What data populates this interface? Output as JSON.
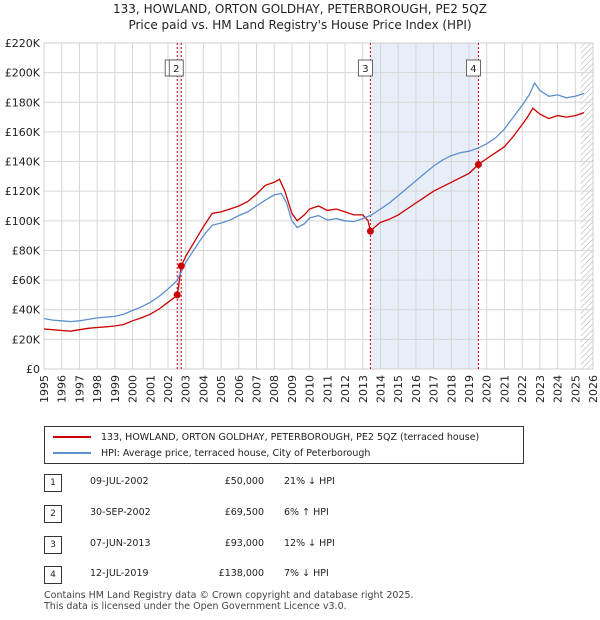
{
  "title_line1": "133, HOWLAND, ORTON GOLDHAY, PETERBOROUGH, PE2 5QZ",
  "title_line2": "Price paid vs. HM Land Registry's House Price Index (HPI)",
  "colors": {
    "price_line": "#cc0000",
    "hpi_line": "#5b8fd0",
    "shade": "#e8eef8",
    "marker_line": "#cc0000",
    "grid": "#d6d6d6",
    "hatch": "#aaaaaa"
  },
  "chart_data": {
    "type": "line",
    "xlabel": "",
    "ylabel": "",
    "xlim": [
      1995,
      2026
    ],
    "ylim": [
      0,
      220000
    ],
    "x_ticks": [
      "1995",
      "1996",
      "1997",
      "1998",
      "1999",
      "2000",
      "2001",
      "2002",
      "2003",
      "2004",
      "2005",
      "2006",
      "2007",
      "2008",
      "2009",
      "2010",
      "2011",
      "2012",
      "2013",
      "2014",
      "2015",
      "2016",
      "2017",
      "2018",
      "2019",
      "2020",
      "2021",
      "2022",
      "2023",
      "2024",
      "2025",
      "2026"
    ],
    "y_ticks": [
      {
        "value": 0,
        "label": "£0"
      },
      {
        "value": 20000,
        "label": "£20K"
      },
      {
        "value": 40000,
        "label": "£40K"
      },
      {
        "value": 60000,
        "label": "£60K"
      },
      {
        "value": 80000,
        "label": "£80K"
      },
      {
        "value": 100000,
        "label": "£100K"
      },
      {
        "value": 120000,
        "label": "£120K"
      },
      {
        "value": 140000,
        "label": "£140K"
      },
      {
        "value": 160000,
        "label": "£160K"
      },
      {
        "value": 180000,
        "label": "£180K"
      },
      {
        "value": 200000,
        "label": "£200K"
      },
      {
        "value": 220000,
        "label": "£220K"
      }
    ],
    "shaded_ranges": [
      [
        2002.52,
        2002.75
      ],
      [
        2013.43,
        2019.53
      ]
    ],
    "hatched_from": 2025.3,
    "series": [
      {
        "name": "133, HOWLAND, ORTON GOLDHAY, PETERBOROUGH, PE2 5QZ (terraced house)",
        "key": "price",
        "points": [
          [
            1995.0,
            27000
          ],
          [
            1995.5,
            26500
          ],
          [
            1996.0,
            26000
          ],
          [
            1996.5,
            25500
          ],
          [
            1997.0,
            26500
          ],
          [
            1997.5,
            27500
          ],
          [
            1998.0,
            28000
          ],
          [
            1998.5,
            28500
          ],
          [
            1999.0,
            29000
          ],
          [
            1999.5,
            30000
          ],
          [
            2000.0,
            32500
          ],
          [
            2000.5,
            34500
          ],
          [
            2001.0,
            37000
          ],
          [
            2001.5,
            40500
          ],
          [
            2002.0,
            45000
          ],
          [
            2002.5,
            49500
          ],
          [
            2002.52,
            50000
          ],
          [
            2002.6,
            56000
          ],
          [
            2002.75,
            69500
          ],
          [
            2003.0,
            76000
          ],
          [
            2003.5,
            86000
          ],
          [
            2004.0,
            96000
          ],
          [
            2004.5,
            105000
          ],
          [
            2005.0,
            106000
          ],
          [
            2005.5,
            108000
          ],
          [
            2006.0,
            110000
          ],
          [
            2006.5,
            113000
          ],
          [
            2007.0,
            118000
          ],
          [
            2007.5,
            124000
          ],
          [
            2008.0,
            126000
          ],
          [
            2008.3,
            128000
          ],
          [
            2008.6,
            120000
          ],
          [
            2009.0,
            105000
          ],
          [
            2009.3,
            100000
          ],
          [
            2009.7,
            104000
          ],
          [
            2010.0,
            108000
          ],
          [
            2010.5,
            110000
          ],
          [
            2011.0,
            107000
          ],
          [
            2011.5,
            108000
          ],
          [
            2012.0,
            106000
          ],
          [
            2012.5,
            104000
          ],
          [
            2013.0,
            104000
          ],
          [
            2013.3,
            100000
          ],
          [
            2013.43,
            93000
          ],
          [
            2013.7,
            96000
          ],
          [
            2014.0,
            99000
          ],
          [
            2014.5,
            101000
          ],
          [
            2015.0,
            104000
          ],
          [
            2015.5,
            108000
          ],
          [
            2016.0,
            112000
          ],
          [
            2016.5,
            116000
          ],
          [
            2017.0,
            120000
          ],
          [
            2017.5,
            123000
          ],
          [
            2018.0,
            126000
          ],
          [
            2018.5,
            129000
          ],
          [
            2019.0,
            132000
          ],
          [
            2019.53,
            138000
          ],
          [
            2020.0,
            142000
          ],
          [
            2020.5,
            146000
          ],
          [
            2021.0,
            150000
          ],
          [
            2021.5,
            157000
          ],
          [
            2022.0,
            165000
          ],
          [
            2022.3,
            170000
          ],
          [
            2022.6,
            176000
          ],
          [
            2023.0,
            172000
          ],
          [
            2023.5,
            169000
          ],
          [
            2024.0,
            171000
          ],
          [
            2024.5,
            170000
          ],
          [
            2025.0,
            171000
          ],
          [
            2025.5,
            173000
          ]
        ]
      },
      {
        "name": "HPI: Average price, terraced house, City of Peterborough",
        "key": "hpi",
        "points": [
          [
            1995.0,
            34000
          ],
          [
            1995.5,
            33000
          ],
          [
            1996.0,
            32500
          ],
          [
            1996.5,
            32000
          ],
          [
            1997.0,
            32500
          ],
          [
            1997.5,
            33500
          ],
          [
            1998.0,
            34500
          ],
          [
            1998.5,
            35000
          ],
          [
            1999.0,
            35500
          ],
          [
            1999.5,
            37000
          ],
          [
            2000.0,
            39500
          ],
          [
            2000.5,
            42000
          ],
          [
            2001.0,
            45000
          ],
          [
            2001.5,
            49000
          ],
          [
            2002.0,
            54000
          ],
          [
            2002.5,
            59500
          ],
          [
            2002.75,
            65500
          ],
          [
            2003.0,
            72000
          ],
          [
            2003.5,
            81000
          ],
          [
            2004.0,
            90000
          ],
          [
            2004.5,
            97000
          ],
          [
            2005.0,
            98500
          ],
          [
            2005.5,
            100500
          ],
          [
            2006.0,
            103500
          ],
          [
            2006.5,
            106000
          ],
          [
            2007.0,
            110000
          ],
          [
            2007.5,
            114000
          ],
          [
            2008.0,
            117500
          ],
          [
            2008.4,
            118500
          ],
          [
            2008.7,
            112000
          ],
          [
            2009.0,
            100000
          ],
          [
            2009.3,
            95500
          ],
          [
            2009.7,
            98000
          ],
          [
            2010.0,
            102000
          ],
          [
            2010.5,
            103500
          ],
          [
            2011.0,
            100500
          ],
          [
            2011.5,
            101500
          ],
          [
            2012.0,
            100000
          ],
          [
            2012.5,
            99500
          ],
          [
            2013.0,
            101500
          ],
          [
            2013.5,
            104000
          ],
          [
            2014.0,
            108000
          ],
          [
            2014.5,
            112000
          ],
          [
            2015.0,
            117000
          ],
          [
            2015.5,
            122000
          ],
          [
            2016.0,
            127000
          ],
          [
            2016.5,
            132000
          ],
          [
            2017.0,
            137000
          ],
          [
            2017.5,
            141000
          ],
          [
            2018.0,
            144000
          ],
          [
            2018.5,
            146000
          ],
          [
            2019.0,
            147000
          ],
          [
            2019.5,
            149000
          ],
          [
            2020.0,
            152000
          ],
          [
            2020.5,
            156000
          ],
          [
            2021.0,
            162000
          ],
          [
            2021.5,
            170000
          ],
          [
            2022.0,
            178000
          ],
          [
            2022.4,
            185000
          ],
          [
            2022.7,
            193000
          ],
          [
            2023.0,
            188000
          ],
          [
            2023.5,
            184000
          ],
          [
            2024.0,
            185000
          ],
          [
            2024.5,
            183000
          ],
          [
            2025.0,
            184000
          ],
          [
            2025.5,
            186000
          ]
        ]
      }
    ],
    "sales": [
      {
        "id": "1",
        "x": 2002.52,
        "value": 50000
      },
      {
        "id": "2",
        "x": 2002.75,
        "value": 69500
      },
      {
        "id": "3",
        "x": 2013.43,
        "value": 93000
      },
      {
        "id": "4",
        "x": 2019.53,
        "value": 138000
      }
    ]
  },
  "legend": {
    "price_label": "133, HOWLAND, ORTON GOLDHAY, PETERBOROUGH, PE2 5QZ (terraced house)",
    "hpi_label": "HPI: Average price, terraced house, City of Peterborough"
  },
  "table": {
    "rows": [
      {
        "num": "1",
        "date": "09-JUL-2002",
        "price": "£50,000",
        "hpi": "21% ↓ HPI"
      },
      {
        "num": "2",
        "date": "30-SEP-2002",
        "price": "£69,500",
        "hpi": "6% ↑ HPI"
      },
      {
        "num": "3",
        "date": "07-JUN-2013",
        "price": "£93,000",
        "hpi": "12% ↓ HPI"
      },
      {
        "num": "4",
        "date": "12-JUL-2019",
        "price": "£138,000",
        "hpi": "7% ↓ HPI"
      }
    ]
  },
  "footer": {
    "line1": "Contains HM Land Registry data © Crown copyright and database right 2025.",
    "line2": "This data is licensed under the Open Government Licence v3.0."
  }
}
